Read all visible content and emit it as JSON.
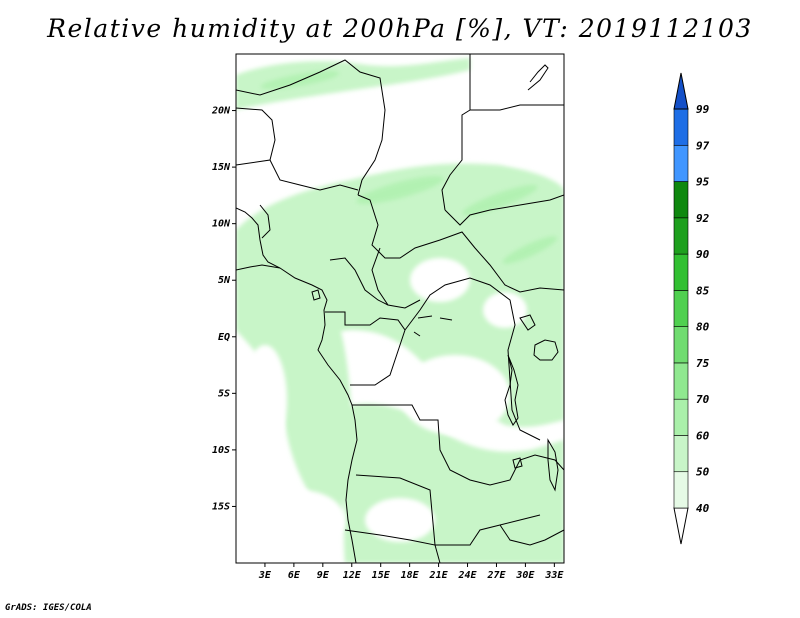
{
  "title": "Relative humidity at 200hPa [%], VT: 2019112103",
  "credit": "GrADS: IGES/COLA",
  "map": {
    "variable": "Relative humidity",
    "level": "200hPa",
    "units": "%",
    "valid_time": "2019112103",
    "lon_range": [
      0,
      34
    ],
    "lat_range": [
      -20,
      25
    ],
    "lat_ticks": [
      {
        "value": 20,
        "label": "20N"
      },
      {
        "value": 15,
        "label": "15N"
      },
      {
        "value": 10,
        "label": "10N"
      },
      {
        "value": 5,
        "label": "5N"
      },
      {
        "value": 0,
        "label": "EQ"
      },
      {
        "value": -5,
        "label": "5S"
      },
      {
        "value": -10,
        "label": "10S"
      },
      {
        "value": -15,
        "label": "15S"
      }
    ],
    "lon_ticks": [
      {
        "value": 3,
        "label": "3E"
      },
      {
        "value": 6,
        "label": "6E"
      },
      {
        "value": 9,
        "label": "9E"
      },
      {
        "value": 12,
        "label": "12E"
      },
      {
        "value": 15,
        "label": "15E"
      },
      {
        "value": 18,
        "label": "18E"
      },
      {
        "value": 21,
        "label": "21E"
      },
      {
        "value": 24,
        "label": "24E"
      },
      {
        "value": 27,
        "label": "27E"
      },
      {
        "value": 30,
        "label": "30E"
      },
      {
        "value": 33,
        "label": "33E"
      }
    ]
  },
  "colorbar": {
    "levels": [
      "40",
      "50",
      "60",
      "70",
      "75",
      "80",
      "85",
      "90",
      "92",
      "95",
      "97",
      "99"
    ],
    "colors": [
      "#ffffff",
      "#e6fae6",
      "#c8f5c8",
      "#aaf0aa",
      "#90e890",
      "#70dc70",
      "#50d050",
      "#32c032",
      "#1ea01e",
      "#0f880f",
      "#4196ff",
      "#1e6ee6",
      "#1450c8"
    ]
  }
}
